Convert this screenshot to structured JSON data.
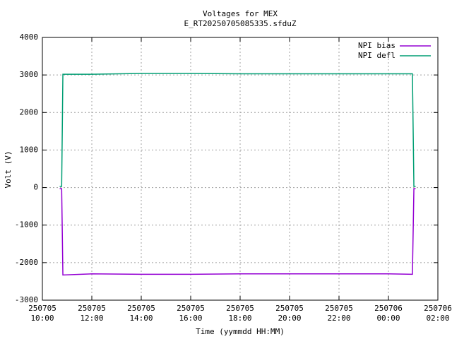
{
  "chart_data": {
    "type": "line",
    "title": "Voltages for MEX",
    "subtitle": "E_RT20250705085335.sfduZ",
    "x_label": "Time (yymmdd HH:MM)",
    "y_label": "Volt (V)",
    "x": [
      10.7,
      10.78,
      10.83,
      12,
      14,
      16,
      18,
      20,
      22,
      24,
      24.97,
      25.03,
      25.1
    ],
    "series": [
      {
        "name": "NPI bias",
        "color": "#9400d3",
        "values": [
          -30,
          -30,
          -2330,
          -2300,
          -2310,
          -2310,
          -2300,
          -2300,
          -2300,
          -2300,
          -2310,
          -30,
          -30
        ]
      },
      {
        "name": "NPI defl",
        "color": "#009e73",
        "values": [
          30,
          30,
          3020,
          3020,
          3040,
          3040,
          3030,
          3030,
          3030,
          3030,
          3030,
          30,
          30
        ]
      }
    ],
    "xlim": [
      10,
      26
    ],
    "xticks": [
      {
        "value": 10,
        "label": "250705 10:00"
      },
      {
        "value": 12,
        "label": "250705 12:00"
      },
      {
        "value": 14,
        "label": "250705 14:00"
      },
      {
        "value": 16,
        "label": "250705 16:00"
      },
      {
        "value": 18,
        "label": "250705 18:00"
      },
      {
        "value": 20,
        "label": "250705 20:00"
      },
      {
        "value": 22,
        "label": "250705 22:00"
      },
      {
        "value": 24,
        "label": "250706 00:00"
      },
      {
        "value": 26,
        "label": "250706 02:00"
      }
    ],
    "ylim": [
      -3000,
      4000
    ],
    "yticks": [
      -3000,
      -2000,
      -1000,
      0,
      1000,
      2000,
      3000,
      4000
    ],
    "grid": true,
    "legend": "top-right"
  }
}
